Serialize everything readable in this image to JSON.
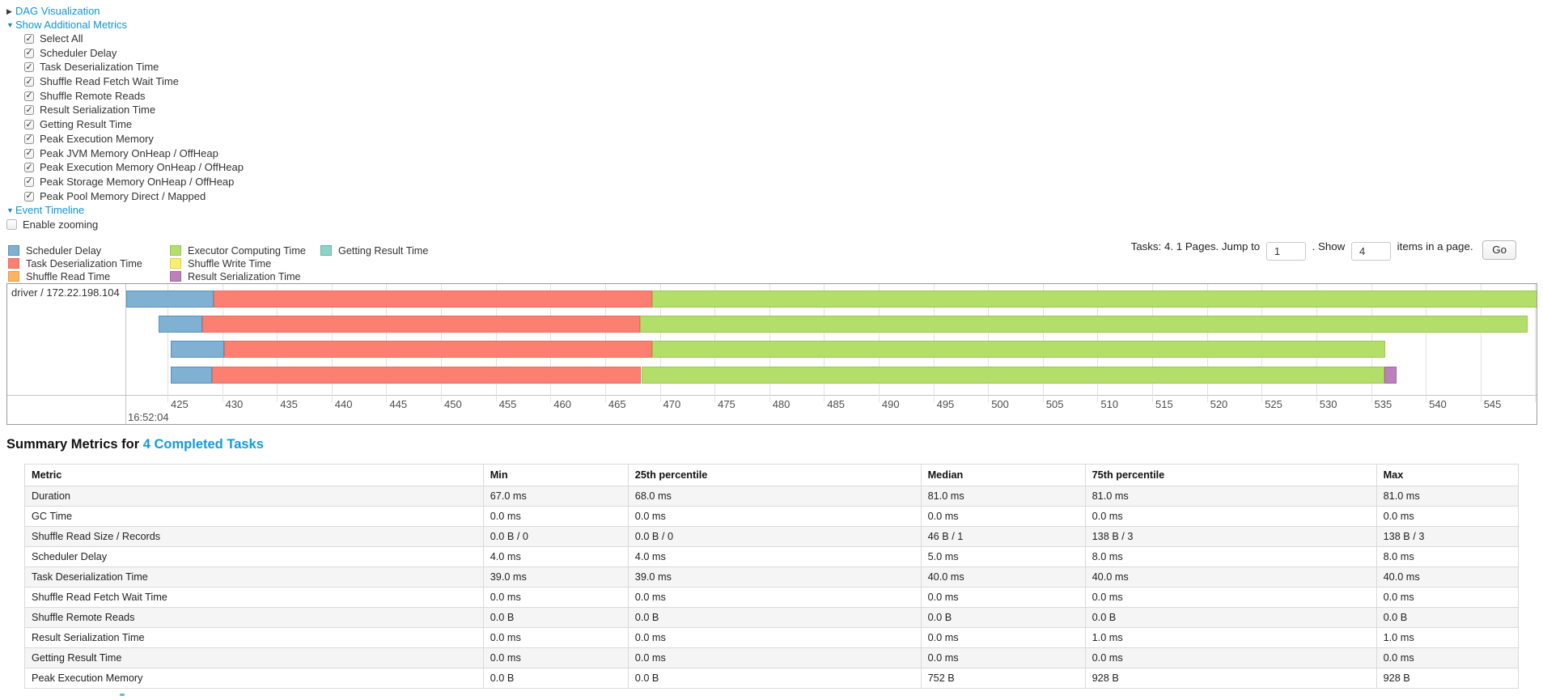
{
  "panel": {
    "dag_link": "DAG Visualization",
    "metrics_link": "Show Additional Metrics",
    "checkboxes": [
      {
        "label": "Select All",
        "checked": true
      },
      {
        "label": "Scheduler Delay",
        "checked": true
      },
      {
        "label": "Task Deserialization Time",
        "checked": true
      },
      {
        "label": "Shuffle Read Fetch Wait Time",
        "checked": true
      },
      {
        "label": "Shuffle Remote Reads",
        "checked": true
      },
      {
        "label": "Result Serialization Time",
        "checked": true
      },
      {
        "label": "Getting Result Time",
        "checked": true
      },
      {
        "label": "Peak Execution Memory",
        "checked": true
      },
      {
        "label": "Peak JVM Memory OnHeap / OffHeap",
        "checked": true
      },
      {
        "label": "Peak Execution Memory OnHeap / OffHeap",
        "checked": true
      },
      {
        "label": "Peak Storage Memory OnHeap / OffHeap",
        "checked": true
      },
      {
        "label": "Peak Pool Memory Direct / Mapped",
        "checked": true
      }
    ],
    "event_timeline_link": "Event Timeline",
    "enable_zooming_label": "Enable zooming"
  },
  "pagination": {
    "tasks_text": "Tasks: 4. 1 Pages. Jump to",
    "jump_value": "1",
    "mid_text": ". Show",
    "show_value": "4",
    "end_text": "items in a page.",
    "go_label": "Go"
  },
  "legend": {
    "columns": [
      [
        {
          "kind": "scheduler_delay",
          "label": "Scheduler Delay"
        },
        {
          "kind": "task_deserialization",
          "label": "Task Deserialization Time"
        },
        {
          "kind": "shuffle_read",
          "label": "Shuffle Read Time"
        }
      ],
      [
        {
          "kind": "executor_computing",
          "label": "Executor Computing Time"
        },
        {
          "kind": "shuffle_write",
          "label": "Shuffle Write Time"
        },
        {
          "kind": "result_serialization",
          "label": "Result Serialization Time"
        }
      ],
      [
        {
          "kind": "getting_result",
          "label": "Getting Result Time"
        }
      ]
    ]
  },
  "chart_data": {
    "type": "timeline",
    "group_label": "driver / 172.22.198.104",
    "axis": {
      "window_min": 421.23,
      "window_max": 550.2,
      "first_tick": 425,
      "last_tick": 550,
      "tick_step": 5,
      "major_label": "16:52:04",
      "units": "milliseconds within second 16:52:04"
    },
    "colors": {
      "scheduler_delay": {
        "fill": "#80B1D3",
        "border": "#5791bb"
      },
      "task_deserialization": {
        "fill": "#FB8072",
        "border": "#ec6a5e"
      },
      "shuffle_read": {
        "fill": "#FDB462",
        "border": "#e59b3c"
      },
      "executor_computing": {
        "fill": "#B3DE69",
        "border": "#9cc94c"
      },
      "shuffle_write": {
        "fill": "#FFED6F",
        "border": "#e0cf4e"
      },
      "result_serialization": {
        "kind_note": "purple",
        "fill": "#BC80BD",
        "border": "#a466a5"
      },
      "getting_result": {
        "fill": "#8DD3C7",
        "border": "#63b5a6"
      }
    },
    "tasks": [
      {
        "segments": [
          {
            "kind": "scheduler_delay",
            "start": 421.23,
            "end": 429.2
          },
          {
            "kind": "task_deserialization",
            "start": 429.2,
            "end": 469.3
          },
          {
            "kind": "executor_computing",
            "start": 469.3,
            "end": 550.6
          }
        ]
      },
      {
        "segments": [
          {
            "kind": "scheduler_delay",
            "start": 424.2,
            "end": 428.2
          },
          {
            "kind": "task_deserialization",
            "start": 428.2,
            "end": 468.2
          },
          {
            "kind": "executor_computing",
            "start": 468.2,
            "end": 549.3
          }
        ]
      },
      {
        "segments": [
          {
            "kind": "scheduler_delay",
            "start": 425.3,
            "end": 430.2
          },
          {
            "kind": "task_deserialization",
            "start": 430.2,
            "end": 469.3
          },
          {
            "kind": "executor_computing",
            "start": 469.3,
            "end": 536.3
          }
        ]
      },
      {
        "segments": [
          {
            "kind": "scheduler_delay",
            "start": 425.3,
            "end": 429.1
          },
          {
            "kind": "task_deserialization",
            "start": 429.1,
            "end": 468.3
          },
          {
            "kind": "executor_computing",
            "start": 468.3,
            "end": 536.2
          },
          {
            "kind": "result_serialization",
            "start": 536.2,
            "end": 537.3
          }
        ]
      }
    ]
  },
  "summary": {
    "heading_prefix": "Summary Metrics for ",
    "heading_link": "4 Completed Tasks",
    "table": {
      "headers": [
        "Metric",
        "Min",
        "25th percentile",
        "Median",
        "75th percentile",
        "Max"
      ],
      "rows": [
        {
          "metric": "Duration",
          "values": [
            "67.0 ms",
            "68.0 ms",
            "81.0 ms",
            "81.0 ms",
            "81.0 ms"
          ]
        },
        {
          "metric": "GC Time",
          "values": [
            "0.0 ms",
            "0.0 ms",
            "0.0 ms",
            "0.0 ms",
            "0.0 ms"
          ]
        },
        {
          "metric": "Shuffle Read Size / Records",
          "values": [
            "0.0 B / 0",
            "0.0 B / 0",
            "46 B / 1",
            "138 B / 3",
            "138 B / 3"
          ]
        },
        {
          "metric": "Scheduler Delay",
          "values": [
            "4.0 ms",
            "4.0 ms",
            "5.0 ms",
            "8.0 ms",
            "8.0 ms"
          ]
        },
        {
          "metric": "Task Deserialization Time",
          "values": [
            "39.0 ms",
            "39.0 ms",
            "40.0 ms",
            "40.0 ms",
            "40.0 ms"
          ]
        },
        {
          "metric": "Shuffle Read Fetch Wait Time",
          "values": [
            "0.0 ms",
            "0.0 ms",
            "0.0 ms",
            "0.0 ms",
            "0.0 ms"
          ]
        },
        {
          "metric": "Shuffle Remote Reads",
          "values": [
            "0.0 B",
            "0.0 B",
            "0.0 B",
            "0.0 B",
            "0.0 B"
          ]
        },
        {
          "metric": "Result Serialization Time",
          "values": [
            "0.0 ms",
            "0.0 ms",
            "0.0 ms",
            "1.0 ms",
            "1.0 ms"
          ]
        },
        {
          "metric": "Getting Result Time",
          "values": [
            "0.0 ms",
            "0.0 ms",
            "0.0 ms",
            "0.0 ms",
            "0.0 ms"
          ]
        },
        {
          "metric": "Peak Execution Memory",
          "values": [
            "0.0 B",
            "0.0 B",
            "752 B",
            "928 B",
            "928 B"
          ]
        }
      ]
    }
  }
}
